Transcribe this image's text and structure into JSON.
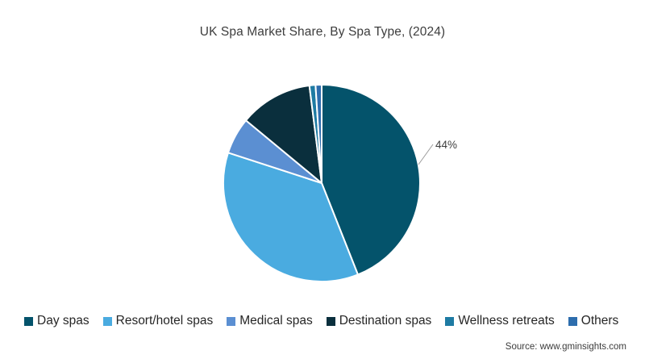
{
  "title": "UK Spa Market Share, By Spa Type, (2024)",
  "source": "Source: www.gminsights.com",
  "chart_data": {
    "type": "pie",
    "title": "UK Spa Market Share, By Spa Type, (2024)",
    "categories": [
      "Day spas",
      "Resort/hotel spas",
      "Medical spas",
      "Destination spas",
      "Wellness retreats",
      "Others"
    ],
    "values": [
      44,
      36,
      6,
      12,
      1,
      1
    ],
    "unit": "%",
    "colors": [
      "#04536B",
      "#4AABE0",
      "#5B8FD2",
      "#0A2F3D",
      "#1E7BA3",
      "#2D6DAD"
    ],
    "data_labels": [
      {
        "category": "Day spas",
        "text": "44%"
      }
    ],
    "start_angle_deg": 0,
    "direction": "clockwise",
    "legend_position": "bottom",
    "slice_border_color": "#ffffff",
    "label_text_color": "#3f3f3f",
    "leader_line_color": "#9b9b9b"
  }
}
